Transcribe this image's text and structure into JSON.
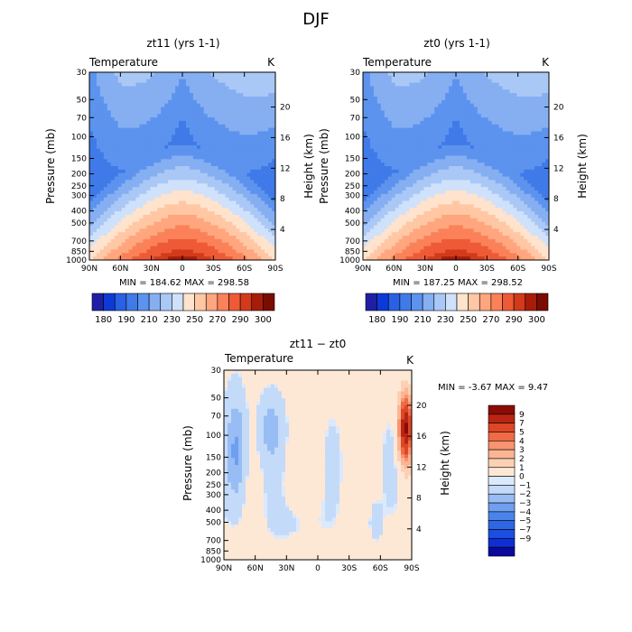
{
  "main_title": "DJF",
  "colors": {
    "abs_palette": [
      "#1f1fa6",
      "#0d3ad6",
      "#2a60e4",
      "#3f7ae8",
      "#5c93ee",
      "#86aff2",
      "#aac8f6",
      "#cfe1fb",
      "#ffe3cc",
      "#ffc7a4",
      "#ffa67e",
      "#fb8159",
      "#ee5a36",
      "#d33a1c",
      "#a71d0a",
      "#7a0c02"
    ],
    "diff_palette": [
      "#0a0a9c",
      "#0d2fd4",
      "#1a4fe0",
      "#2e67e6",
      "#4a83ea",
      "#6e9ff0",
      "#98bcf4",
      "#c4daf9",
      "#dbe9fc",
      "#fde8d6",
      "#fcd0b4",
      "#fbb594",
      "#f8946f",
      "#f06a46",
      "#dd4726",
      "#b92512",
      "#8a0c04"
    ]
  },
  "chart_data": [
    {
      "type": "heatmap",
      "panel": "left",
      "title": "zt11 (yrs 1-1)",
      "left_label": "Temperature",
      "right_label": "K",
      "xlabel": "",
      "ylabel": "Pressure (mb)",
      "ylabel_right": "Height (km)",
      "x_ticks": [
        "90N",
        "60N",
        "30N",
        "0",
        "30S",
        "60S",
        "90S"
      ],
      "y_ticks": [
        "30",
        "50",
        "70",
        "100",
        "150",
        "200",
        "250",
        "300",
        "400",
        "500",
        "700",
        "850",
        "1000"
      ],
      "right_ticks": [
        "20",
        "16",
        "12",
        "8",
        "4"
      ],
      "minmax": "MIN = 184.62   MAX = 298.58",
      "colorbar_labels": [
        "180",
        "190",
        "210",
        "230",
        "250",
        "270",
        "290",
        "300"
      ]
    },
    {
      "type": "heatmap",
      "panel": "right",
      "title": "zt0 (yrs 1-1)",
      "left_label": "Temperature",
      "right_label": "K",
      "xlabel": "",
      "ylabel": "Pressure (mb)",
      "ylabel_right": "Height (km)",
      "x_ticks": [
        "90N",
        "60N",
        "30N",
        "0",
        "30S",
        "60S",
        "90S"
      ],
      "y_ticks": [
        "30",
        "50",
        "70",
        "100",
        "150",
        "200",
        "250",
        "300",
        "400",
        "500",
        "700",
        "850",
        "1000"
      ],
      "right_ticks": [
        "20",
        "16",
        "12",
        "8",
        "4"
      ],
      "minmax": "MIN = 187.25   MAX = 298.52",
      "colorbar_labels": [
        "180",
        "190",
        "210",
        "230",
        "250",
        "270",
        "290",
        "300"
      ]
    },
    {
      "type": "heatmap",
      "panel": "diff",
      "title": "zt11 − zt0",
      "left_label": "Temperature",
      "right_label": "K",
      "xlabel": "",
      "ylabel": "Pressure (mb)",
      "ylabel_right": "Height (km)",
      "x_ticks": [
        "90N",
        "60N",
        "30N",
        "0",
        "30S",
        "60S",
        "90S"
      ],
      "y_ticks": [
        "30",
        "50",
        "70",
        "100",
        "150",
        "200",
        "250",
        "300",
        "400",
        "500",
        "700",
        "850",
        "1000"
      ],
      "right_ticks": [
        "20",
        "16",
        "12",
        "8",
        "4"
      ],
      "minmax": "MIN =   -3.67   MAX =    9.47",
      "colorbar_labels": [
        "9",
        "7",
        "5",
        "4",
        "3",
        "2",
        "1",
        "0",
        "−1",
        "−2",
        "−3",
        "−4",
        "−5",
        "−7",
        "−9"
      ]
    }
  ]
}
